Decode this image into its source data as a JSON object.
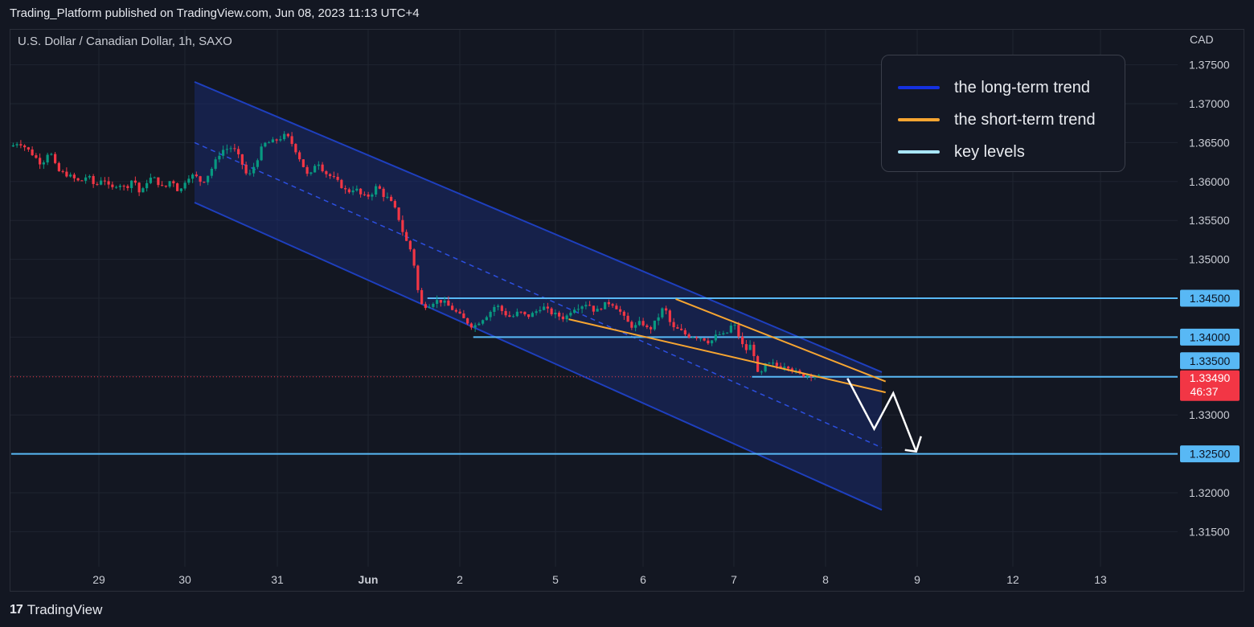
{
  "header": {
    "published_line": "Trading_Platform published on TradingView.com, Jun 08, 2023 11:13 UTC+4"
  },
  "chart_data": {
    "type": "candlestick",
    "symbol": "U.S. Dollar / Canadian Dollar, 1h, SAXO",
    "currency": "CAD",
    "ylim": [
      1.3105,
      1.3795
    ],
    "y_ticks": [
      "1.37500",
      "1.37000",
      "1.36500",
      "1.36000",
      "1.35500",
      "1.35000",
      "1.34500",
      "1.34000",
      "1.33500",
      "1.33000",
      "1.32500",
      "1.32000",
      "1.31500"
    ],
    "x_ticks": [
      {
        "label": "29",
        "bold": false
      },
      {
        "label": "30",
        "bold": false
      },
      {
        "label": "31",
        "bold": false
      },
      {
        "label": "Jun",
        "bold": true
      },
      {
        "label": "2",
        "bold": false
      },
      {
        "label": "5",
        "bold": false
      },
      {
        "label": "6",
        "bold": false
      },
      {
        "label": "7",
        "bold": false
      },
      {
        "label": "8",
        "bold": false
      },
      {
        "label": "9",
        "bold": false
      },
      {
        "label": "12",
        "bold": false
      },
      {
        "label": "13",
        "bold": false
      }
    ],
    "price_path": [
      [
        0,
        1.3645
      ],
      [
        2,
        1.3651
      ],
      [
        5,
        1.3638
      ],
      [
        8,
        1.3622
      ],
      [
        10,
        1.3641
      ],
      [
        12,
        1.3614
      ],
      [
        15,
        1.3608
      ],
      [
        18,
        1.3599
      ],
      [
        20,
        1.3608
      ],
      [
        22,
        1.3593
      ],
      [
        24,
        1.3606
      ],
      [
        26,
        1.3589
      ],
      [
        28,
        1.3598
      ],
      [
        30,
        1.3591
      ],
      [
        32,
        1.3605
      ],
      [
        34,
        1.358
      ],
      [
        35,
        1.3598
      ],
      [
        37,
        1.3606
      ],
      [
        40,
        1.359
      ],
      [
        42,
        1.3604
      ],
      [
        44,
        1.3585
      ],
      [
        46,
        1.3606
      ],
      [
        48,
        1.3608
      ],
      [
        50,
        1.3598
      ],
      [
        52,
        1.3612
      ],
      [
        55,
        1.364
      ],
      [
        58,
        1.3644
      ],
      [
        60,
        1.3628
      ],
      [
        62,
        1.3604
      ],
      [
        64,
        1.3624
      ],
      [
        66,
        1.3648
      ],
      [
        69,
        1.3652
      ],
      [
        72,
        1.366
      ],
      [
        74,
        1.3645
      ],
      [
        76,
        1.3625
      ],
      [
        78,
        1.3603
      ],
      [
        80,
        1.3628
      ],
      [
        82,
        1.3612
      ],
      [
        85,
        1.3602
      ],
      [
        88,
        1.3586
      ],
      [
        90,
        1.3592
      ],
      [
        92,
        1.358
      ],
      [
        94,
        1.3582
      ],
      [
        96,
        1.3596
      ],
      [
        97,
        1.3584
      ],
      [
        99,
        1.3577
      ],
      [
        101,
        1.356
      ],
      [
        103,
        1.3528
      ],
      [
        105,
        1.3508
      ],
      [
        106,
        1.3478
      ],
      [
        107,
        1.3442
      ],
      [
        109,
        1.344
      ],
      [
        111,
        1.3447
      ],
      [
        113,
        1.3446
      ],
      [
        115,
        1.3438
      ],
      [
        117,
        1.343
      ],
      [
        119,
        1.3421
      ],
      [
        121,
        1.3413
      ],
      [
        123,
        1.3422
      ],
      [
        125,
        1.343
      ],
      [
        127,
        1.3442
      ],
      [
        129,
        1.3431
      ],
      [
        131,
        1.3425
      ],
      [
        133,
        1.3433
      ],
      [
        135,
        1.3426
      ],
      [
        137,
        1.3431
      ],
      [
        139,
        1.344
      ],
      [
        141,
        1.3432
      ],
      [
        143,
        1.3428
      ],
      [
        145,
        1.3424
      ],
      [
        147,
        1.3437
      ],
      [
        149,
        1.344
      ],
      [
        151,
        1.3444
      ],
      [
        153,
        1.3432
      ],
      [
        155,
        1.3441
      ],
      [
        157,
        1.3445
      ],
      [
        159,
        1.3436
      ],
      [
        161,
        1.3421
      ],
      [
        163,
        1.3412
      ],
      [
        165,
        1.342
      ],
      [
        167,
        1.3408
      ],
      [
        169,
        1.3422
      ],
      [
        171,
        1.344
      ],
      [
        173,
        1.3412
      ],
      [
        175,
        1.3409
      ],
      [
        177,
        1.3402
      ],
      [
        179,
        1.3401
      ],
      [
        181,
        1.3399
      ],
      [
        183,
        1.3393
      ],
      [
        185,
        1.3404
      ],
      [
        187,
        1.3402
      ],
      [
        189,
        1.3418
      ],
      [
        190,
        1.341
      ],
      [
        191,
        1.3393
      ],
      [
        192,
        1.3386
      ],
      [
        193,
        1.3382
      ],
      [
        194,
        1.3396
      ],
      [
        195,
        1.336
      ],
      [
        196,
        1.3345
      ],
      [
        197,
        1.3363
      ],
      [
        199,
        1.3366
      ],
      [
        201,
        1.3362
      ],
      [
        203,
        1.3365
      ],
      [
        205,
        1.3356
      ],
      [
        207,
        1.3351
      ],
      [
        209,
        1.3353
      ],
      [
        211,
        1.3349
      ]
    ],
    "channel": {
      "start_bar": 48,
      "end_bar": 228,
      "upper": [
        1.3728,
        1.3355
      ],
      "middle": [
        1.365,
        1.3258
      ],
      "lower": [
        1.3573,
        1.3178
      ]
    },
    "key_levels": [
      {
        "price": 1.345,
        "label": "1.34500",
        "start_bar": 109
      },
      {
        "price": 1.34,
        "label": "1.34000",
        "start_bar": 121
      },
      {
        "price": 1.3349,
        "label": "1.33500",
        "start_bar": 194
      },
      {
        "price": 1.325,
        "label": "1.32500",
        "start_bar": 0
      }
    ],
    "short_term_trend": {
      "upper": {
        "bars": [
          174,
          229
        ],
        "prices": [
          1.3449,
          1.3343
        ]
      },
      "lower": {
        "bars": [
          146,
          229
        ],
        "prices": [
          1.3423,
          1.3329
        ]
      }
    },
    "projection": [
      [
        219,
        1.3347
      ],
      [
        226,
        1.3282
      ],
      [
        231,
        1.3328
      ],
      [
        237,
        1.3253
      ]
    ],
    "last_price": {
      "price": 1.3349,
      "label": "1.33490",
      "countdown": "46:37"
    },
    "colors": {
      "background": "#131722",
      "up": "#089981",
      "down": "#f23645",
      "channel_line": "#1e3fbe",
      "channel_fill": "#1a2a6c",
      "short_trend": "#f7a531",
      "key_level": "#58b8f5",
      "key_level_label_bg": "#58b8f5",
      "projection": "#ffffff",
      "grid": "#1f2430"
    }
  },
  "legend": {
    "items": [
      {
        "label": "the long-term trend",
        "color": "#1531e0"
      },
      {
        "label": "the short-term trend",
        "color": "#f7a531"
      },
      {
        "label": "key levels",
        "color": "#a9e6ff"
      }
    ]
  },
  "footer": {
    "brand": "TradingView",
    "logo_glyph": "17"
  }
}
